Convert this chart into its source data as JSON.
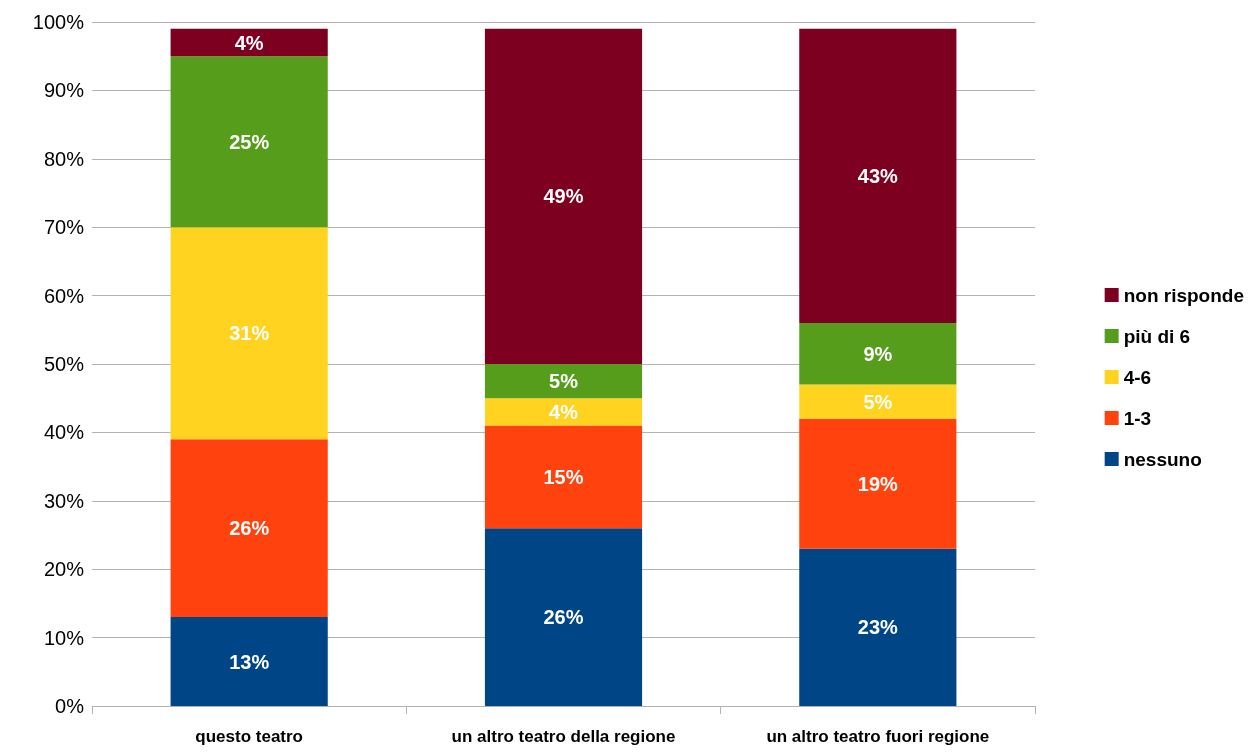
{
  "chart_data": {
    "type": "bar",
    "stacked": true,
    "categories": [
      "questo teatro",
      "un altro teatro della regione",
      "un altro teatro fuori regione"
    ],
    "series": [
      {
        "name": "nessuno",
        "color": "#004586",
        "values": [
          13,
          26,
          23
        ],
        "value_labels": [
          "13%",
          "26%",
          "23%"
        ]
      },
      {
        "name": "1-3",
        "color": "#ff420e",
        "values": [
          26,
          15,
          19
        ],
        "value_labels": [
          "26%",
          "15%",
          "19%"
        ]
      },
      {
        "name": "4-6",
        "color": "#ffd320",
        "values": [
          31,
          4,
          5
        ],
        "value_labels": [
          "31%",
          "4%",
          "5%"
        ]
      },
      {
        "name": "più di 6",
        "color": "#579d1c",
        "values": [
          25,
          5,
          9
        ],
        "value_labels": [
          "25%",
          "5%",
          "9%"
        ]
      },
      {
        "name": "non risponde",
        "color": "#7e0021",
        "values": [
          4,
          49,
          43
        ],
        "value_labels": [
          "4%",
          "49%",
          "43%"
        ]
      }
    ],
    "ylim": [
      0,
      100
    ],
    "yticks": [
      {
        "value": 0,
        "label": "0%"
      },
      {
        "value": 10,
        "label": "10%"
      },
      {
        "value": 20,
        "label": "20%"
      },
      {
        "value": 30,
        "label": "30%"
      },
      {
        "value": 40,
        "label": "40%"
      },
      {
        "value": 50,
        "label": "50%"
      },
      {
        "value": 60,
        "label": "60%"
      },
      {
        "value": 70,
        "label": "70%"
      },
      {
        "value": 80,
        "label": "80%"
      },
      {
        "value": 90,
        "label": "90%"
      },
      {
        "value": 100,
        "label": "100%"
      }
    ],
    "grid": "y",
    "legend": "right"
  }
}
